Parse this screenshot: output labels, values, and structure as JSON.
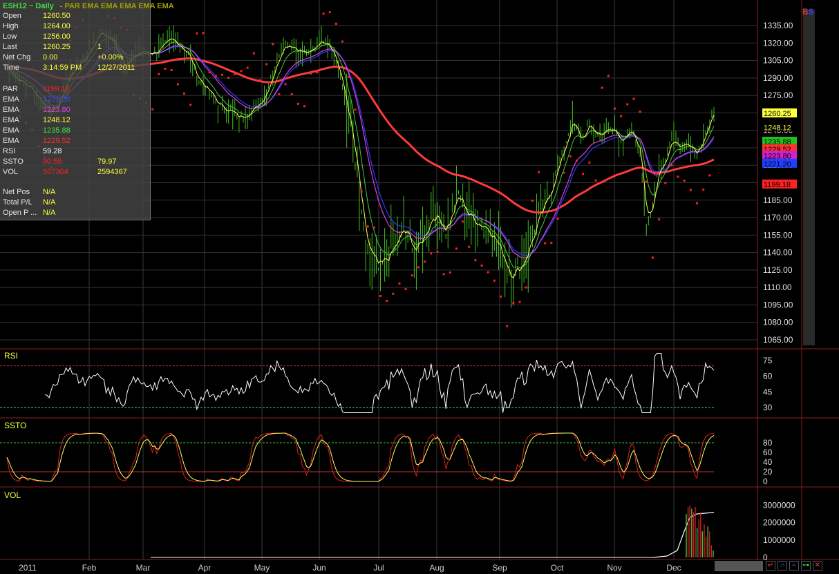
{
  "header": {
    "symbol": "ESH12 ~ Daily",
    "studies": "- PAR EMA EMA EMA EMA EMA"
  },
  "info": {
    "rows": [
      {
        "label": "Open",
        "value": "1260.50",
        "extra": "",
        "color": "#ffff40"
      },
      {
        "label": "High",
        "value": "1264.00",
        "extra": "",
        "color": "#ffff40"
      },
      {
        "label": "Low",
        "value": "1256.00",
        "extra": "",
        "color": "#ffff40"
      },
      {
        "label": "Last",
        "value": "1260.25",
        "extra": "1",
        "color": "#ffff40"
      },
      {
        "label": "Net Chg",
        "value": "0.00",
        "extra": "+0.00%",
        "color": "#ffff40"
      },
      {
        "label": "Time",
        "value": "3:14:59 PM",
        "extra": "12/27/2011",
        "color": "#ffff40"
      },
      {
        "label": "PAR",
        "value": "1199.18",
        "extra": "",
        "color": "#ff2020"
      },
      {
        "label": "EMA",
        "value": "1221.20",
        "extra": "",
        "color": "#3050ff"
      },
      {
        "label": "EMA",
        "value": "1223.80",
        "extra": "",
        "color": "#e040e0"
      },
      {
        "label": "EMA",
        "value": "1248.12",
        "extra": "",
        "color": "#ffff40"
      },
      {
        "label": "EMA",
        "value": "1235.88",
        "extra": "",
        "color": "#40e040"
      },
      {
        "label": "EMA",
        "value": "1229.52",
        "extra": "",
        "color": "#ff3030"
      },
      {
        "label": "RSI",
        "value": "59.28",
        "extra": "",
        "color": "#ffffff"
      },
      {
        "label": "SSTO",
        "value": "90.55",
        "extra": "79.97",
        "color": "#ff2020"
      },
      {
        "label": "VOL",
        "value": "507304",
        "extra": "2594367",
        "color": "#ff2020"
      },
      {
        "label": "Net Pos",
        "value": "N/A",
        "extra": "",
        "color": "#ffff40"
      },
      {
        "label": "Total P/L",
        "value": "N/A",
        "extra": "",
        "color": "#ffff40"
      },
      {
        "label": "Open P ...",
        "value": "N/A",
        "extra": "",
        "color": "#ffff40"
      }
    ]
  },
  "panel_labels": {
    "rsi": "RSI",
    "ssto": "SSTO",
    "vol": "VOL"
  },
  "corner_text": {
    "b": "B",
    "s": "S"
  },
  "chart_data": {
    "type": "ohlc",
    "months": [
      "2011",
      "Feb",
      "Mar",
      "Apr",
      "May",
      "Jun",
      "Jul",
      "Aug",
      "Sep",
      "Oct",
      "Nov",
      "Dec"
    ],
    "price_axis": {
      "ticks": [
        "1335.00",
        "1320.00",
        "1305.00",
        "1290.00",
        "1275.00",
        "1260.00",
        "1245.00",
        "1230.00",
        "1215.00",
        "1200.00",
        "1185.00",
        "1170.00",
        "1155.00",
        "1140.00",
        "1125.00",
        "1110.00",
        "1095.00",
        "1080.00",
        "1065.00"
      ],
      "range": [
        1065,
        1335
      ]
    },
    "price_path": [
      [
        0,
        1300
      ],
      [
        4,
        1290
      ],
      [
        12,
        1280
      ],
      [
        18,
        1265
      ],
      [
        23,
        1262
      ],
      [
        30,
        1295
      ],
      [
        38,
        1310
      ],
      [
        44,
        1330
      ],
      [
        50,
        1322
      ],
      [
        56,
        1300
      ],
      [
        62,
        1312
      ],
      [
        70,
        1312
      ],
      [
        78,
        1323
      ],
      [
        82,
        1318
      ],
      [
        86,
        1310
      ],
      [
        90,
        1290
      ],
      [
        97,
        1275
      ],
      [
        101,
        1265
      ],
      [
        106,
        1262
      ],
      [
        110,
        1255
      ],
      [
        114,
        1260
      ],
      [
        118,
        1265
      ],
      [
        122,
        1275
      ],
      [
        127,
        1300
      ],
      [
        131,
        1320
      ],
      [
        135,
        1318
      ],
      [
        139,
        1313
      ],
      [
        143,
        1310
      ],
      [
        148,
        1322
      ],
      [
        152,
        1322
      ],
      [
        155,
        1310
      ],
      [
        158,
        1290
      ],
      [
        162,
        1255
      ],
      [
        166,
        1205
      ],
      [
        170,
        1145
      ],
      [
        176,
        1125
      ],
      [
        182,
        1140
      ],
      [
        188,
        1160
      ],
      [
        194,
        1140
      ],
      [
        202,
        1175
      ],
      [
        208,
        1160
      ],
      [
        214,
        1190
      ],
      [
        219,
        1170
      ],
      [
        224,
        1165
      ],
      [
        229,
        1160
      ],
      [
        234,
        1140
      ],
      [
        239,
        1120
      ],
      [
        244,
        1130
      ],
      [
        248,
        1150
      ],
      [
        252,
        1170
      ],
      [
        256,
        1185
      ],
      [
        260,
        1210
      ],
      [
        264,
        1230
      ],
      [
        268,
        1255
      ],
      [
        272,
        1235
      ],
      [
        276,
        1250
      ],
      [
        280,
        1240
      ],
      [
        284,
        1245
      ],
      [
        288,
        1245
      ],
      [
        292,
        1235
      ],
      [
        296,
        1245
      ],
      [
        300,
        1225
      ],
      [
        303,
        1165
      ],
      [
        306,
        1180
      ],
      [
        309,
        1215
      ],
      [
        312,
        1220
      ],
      [
        315,
        1240
      ],
      [
        319,
        1230
      ],
      [
        323,
        1235
      ],
      [
        327,
        1225
      ],
      [
        331,
        1245
      ],
      [
        335,
        1260
      ]
    ],
    "price_labels": [
      {
        "text": "1260.25",
        "bg": "#ffff40",
        "fg": "#000000",
        "price": 1260.25
      },
      {
        "text": "1248.12",
        "bg": "#000000",
        "fg": "#ffff40",
        "price": 1248.12
      },
      {
        "text": "1235.88",
        "bg": "#20c020",
        "fg": "#000000",
        "price": 1235.88
      },
      {
        "text": "1229.52",
        "bg": "#ff3030",
        "fg": "#000000",
        "price": 1229.52
      },
      {
        "text": "1223.80",
        "bg": "#d020d0",
        "fg": "#000000",
        "price": 1223.8
      },
      {
        "text": "1221.20",
        "bg": "#2040ff",
        "fg": "#000000",
        "price": 1221.2
      },
      {
        "text": "1199.18",
        "bg": "#ff2020",
        "fg": "#000000",
        "price": 1199.18
      }
    ],
    "rsi": {
      "ticks": [
        "75",
        "60",
        "45",
        "30"
      ],
      "range": [
        20,
        85
      ],
      "upper": 70,
      "lower": 30,
      "last": 59.28
    },
    "ssto": {
      "ticks": [
        "80",
        "60",
        "40",
        "20",
        "0"
      ],
      "range": [
        0,
        100
      ],
      "upper": 80,
      "lower": 20,
      "k_last": 90.55,
      "d_last": 79.97
    },
    "vol": {
      "ticks": [
        "3000000",
        "2000000",
        "1000000",
        "0"
      ],
      "range": [
        0,
        3300000
      ],
      "bars": [
        2500000,
        2900000,
        3000000,
        2800000,
        2600000,
        2900000,
        1700000,
        2200000,
        2600000,
        1500000,
        1900000,
        1200000,
        1800000,
        1500000,
        700000,
        400000
      ],
      "avg_last": 2594367,
      "last": 507304
    }
  }
}
